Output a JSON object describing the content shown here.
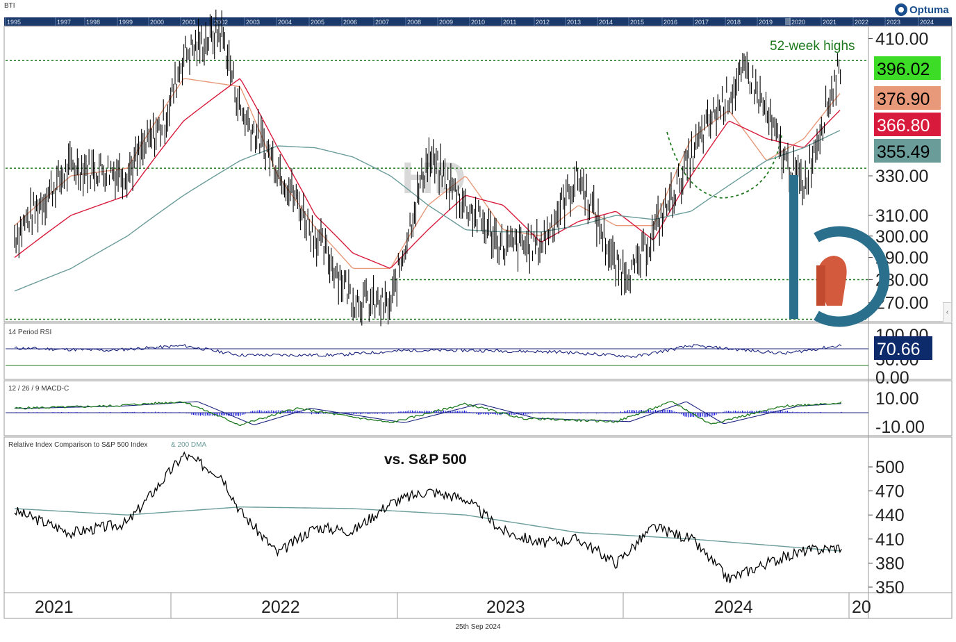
{
  "app": {
    "ticker": "BTI",
    "logo_text": "Optuma",
    "date_label": "25th Sep 2024",
    "watermark": "HD"
  },
  "overview_years": [
    "1995",
    "1997",
    "1998",
    "1999",
    "2000",
    "2001",
    "2002",
    "2003",
    "2004",
    "2005",
    "2006",
    "2007",
    "2008",
    "2009",
    "2010",
    "2011",
    "2012",
    "2013",
    "2014",
    "2015",
    "2016",
    "2017",
    "2018",
    "2019",
    "2020",
    "2021",
    "2022",
    "2023",
    "2024"
  ],
  "annotations": {
    "highs_text": "52-week highs",
    "rel_text": "vs. S&P 500"
  },
  "panels": {
    "price_title": "",
    "rsi_title": "14 Period RSI",
    "macd_title": "12 / 26 / 9 MACD-C",
    "rel_title": "Relative Index Comparison to S&P 500 Index",
    "rel_title_extra": "& 200 DMA"
  },
  "price_badges": [
    {
      "label": "396.02",
      "bg": "#3ddc27",
      "fg": "#000000"
    },
    {
      "label": "376.90",
      "bg": "#e8997a",
      "fg": "#000000"
    },
    {
      "label": "366.80",
      "bg": "#d81b3c",
      "fg": "#ffffff"
    },
    {
      "label": "355.49",
      "bg": "#6a9c9a",
      "fg": "#000000"
    }
  ],
  "rsi_badge": {
    "label": "70.66",
    "bg": "#0d2a6b",
    "fg": "#ffffff"
  },
  "x_axis_years": [
    "2021",
    "2022",
    "2023",
    "2024",
    "20"
  ],
  "colors": {
    "price": "#000000",
    "ma_fast": "#e8997a",
    "ma_mid": "#d81b3c",
    "ma_slow": "#6a9c9a",
    "guide": "#1e7a1e",
    "rsi": "#1a237e",
    "macd": "#1e7a1e",
    "macd_signal": "#1a237e",
    "macd_hist": "#1a1ad8",
    "rel": "#000000",
    "rel_ma": "#6a9c9a",
    "brand": "#1a4e8c"
  },
  "chart_data": [
    {
      "type": "line",
      "title": "BTI",
      "y_scale": "log",
      "ylim": [
        262,
        418
      ],
      "y_ticks": [
        "410.00",
        "330.00",
        "310.00",
        "300.00",
        "290.00",
        "280.00",
        "270.00"
      ],
      "x_range": [
        "2021-01",
        "2024-12"
      ],
      "series": [
        {
          "name": "Price",
          "style": "bars",
          "x": [
            "2021-01",
            "2021-04",
            "2021-07",
            "2021-09",
            "2021-10",
            "2021-12",
            "2022-01",
            "2022-03",
            "2022-05",
            "2022-07",
            "2022-09",
            "2022-11",
            "2023-01",
            "2023-03",
            "2023-05",
            "2023-07",
            "2023-09",
            "2023-10",
            "2023-12",
            "2024-02",
            "2024-04",
            "2024-06",
            "2024-07",
            "2024-09"
          ],
          "values": [
            300,
            335,
            332,
            360,
            400,
            415,
            366,
            335,
            300,
            272,
            268,
            340,
            315,
            295,
            296,
            330,
            285,
            284,
            320,
            360,
            390,
            338,
            325,
            396
          ]
        },
        {
          "x": [
            "2021-01",
            "2021-04",
            "2021-07",
            "2021-10",
            "2022-01",
            "2022-03",
            "2022-05",
            "2022-07",
            "2022-09",
            "2022-11",
            "2023-01",
            "2023-03",
            "2023-05",
            "2023-07",
            "2023-09",
            "2023-11",
            "2024-01",
            "2024-03",
            "2024-05",
            "2024-07",
            "2024-09"
          ],
          "values": [
            305,
            330,
            334,
            385,
            380,
            330,
            304,
            285,
            285,
            315,
            330,
            303,
            300,
            315,
            305,
            305,
            350,
            366,
            338,
            350,
            377
          ]
        },
        {
          "x": [
            "2021-01",
            "2021-04",
            "2021-07",
            "2021-10",
            "2022-01",
            "2022-03",
            "2022-05",
            "2022-07",
            "2022-09",
            "2022-11",
            "2023-01",
            "2023-03",
            "2023-05",
            "2023-07",
            "2023-09",
            "2023-11",
            "2024-01",
            "2024-03",
            "2024-05",
            "2024-07",
            "2024-09"
          ],
          "values": [
            290,
            310,
            320,
            360,
            385,
            345,
            310,
            292,
            285,
            303,
            320,
            315,
            297,
            307,
            312,
            298,
            330,
            360,
            350,
            345,
            367
          ]
        },
        {
          "x": [
            "2021-01",
            "2021-04",
            "2021-07",
            "2021-10",
            "2022-01",
            "2022-03",
            "2022-05",
            "2022-07",
            "2022-09",
            "2022-11",
            "2023-01",
            "2023-03",
            "2023-05",
            "2023-07",
            "2023-09",
            "2023-11",
            "2024-01",
            "2024-03",
            "2024-05",
            "2024-07",
            "2024-09"
          ],
          "values": [
            275,
            285,
            300,
            320,
            338,
            346,
            345,
            340,
            330,
            315,
            303,
            302,
            302,
            305,
            310,
            308,
            312,
            325,
            338,
            345,
            355
          ]
        }
      ],
      "reference_levels": [
        396,
        334,
        280,
        263
      ]
    },
    {
      "type": "line",
      "title": "14 Period RSI",
      "ylim": [
        0,
        100
      ],
      "y_ticks": [
        "100.00",
        "50.00",
        "0.00"
      ],
      "reference_levels": [
        70,
        30
      ],
      "series": [
        {
          "name": "RSI",
          "x": [
            "2021-01",
            "2021-06",
            "2021-10",
            "2022-01",
            "2022-06",
            "2022-10",
            "2023-01",
            "2023-06",
            "2023-10",
            "2024-01",
            "2024-06",
            "2024-09"
          ],
          "values": [
            62,
            55,
            70,
            40,
            40,
            55,
            55,
            50,
            35,
            70,
            45,
            71
          ]
        }
      ]
    },
    {
      "type": "line",
      "title": "12 / 26 / 9 MACD-C",
      "ylim": [
        -15,
        15
      ],
      "y_ticks": [
        "10.00",
        "-10.00"
      ],
      "series": [
        {
          "name": "MACD",
          "x": [
            "2021-01",
            "2021-06",
            "2021-10",
            "2022-01",
            "2022-04",
            "2022-09",
            "2023-01",
            "2023-04",
            "2023-09",
            "2023-12",
            "2024-02",
            "2024-06",
            "2024-09"
          ],
          "values": [
            4,
            6,
            10,
            -11,
            4,
            -9,
            8,
            -5,
            -8,
            10,
            -10,
            6,
            9
          ]
        }
      ]
    },
    {
      "type": "line",
      "title": "Relative Index Comparison to S&P 500 Index",
      "ylim": [
        345,
        520
      ],
      "y_ticks": [
        "500",
        "470",
        "440",
        "410",
        "380",
        "350"
      ],
      "series": [
        {
          "x": [
            "2021-01",
            "2021-04",
            "2021-07",
            "2021-10",
            "2021-12",
            "2022-01",
            "2022-03",
            "2022-05",
            "2022-07",
            "2022-09",
            "2022-11",
            "2023-01",
            "2023-03",
            "2023-05",
            "2023-07",
            "2023-09",
            "2023-11",
            "2024-01",
            "2024-03",
            "2024-05",
            "2024-07",
            "2024-09"
          ],
          "values": [
            445,
            418,
            430,
            515,
            490,
            445,
            392,
            425,
            420,
            455,
            470,
            460,
            420,
            405,
            410,
            380,
            425,
            410,
            360,
            380,
            395,
            400
          ]
        },
        {
          "x": [
            "2021-01",
            "2021-07",
            "2022-01",
            "2022-07",
            "2023-01",
            "2023-07",
            "2024-01",
            "2024-09"
          ],
          "values": [
            448,
            440,
            450,
            448,
            440,
            418,
            410,
            395
          ]
        }
      ]
    }
  ]
}
